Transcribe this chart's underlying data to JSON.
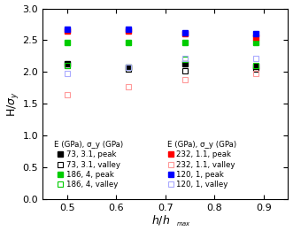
{
  "xlim": [
    0.45,
    0.95
  ],
  "ylim": [
    0.0,
    3.0
  ],
  "xticks": [
    0.5,
    0.6,
    0.7,
    0.8,
    0.9
  ],
  "yticks": [
    0.0,
    0.5,
    1.0,
    1.5,
    2.0,
    2.5,
    3.0
  ],
  "series": [
    {
      "label": "73, 3.1, peak",
      "color": "black",
      "filled": true,
      "x": [
        0.5,
        0.625,
        0.74,
        0.885
      ],
      "y": [
        2.13,
        2.07,
        2.13,
        2.09
      ]
    },
    {
      "label": "73, 3.1, valley",
      "color": "black",
      "filled": false,
      "x": [
        0.5,
        0.625,
        0.74,
        0.885
      ],
      "y": [
        2.1,
        2.05,
        2.02,
        2.05
      ]
    },
    {
      "label": "186, 4, peak",
      "color": "#00cc00",
      "filled": true,
      "x": [
        0.5,
        0.625,
        0.74,
        0.885
      ],
      "y": [
        2.46,
        2.46,
        2.47,
        2.46
      ]
    },
    {
      "label": "186, 4, valley",
      "color": "#00cc00",
      "filled": false,
      "x": [
        0.5,
        0.625,
        0.74,
        0.885
      ],
      "y": [
        2.1,
        2.07,
        2.2,
        2.1
      ]
    },
    {
      "label": "232, 1.1, peak",
      "color": "red",
      "filled": true,
      "x": [
        0.5,
        0.625,
        0.74,
        0.885
      ],
      "y": [
        2.65,
        2.65,
        2.61,
        2.55
      ]
    },
    {
      "label": "232, 1.1, valley",
      "color": "#ff9999",
      "filled": false,
      "x": [
        0.5,
        0.625,
        0.74,
        0.885
      ],
      "y": [
        1.64,
        1.77,
        1.88,
        1.97
      ]
    },
    {
      "label": "120, 1, peak",
      "color": "blue",
      "filled": true,
      "x": [
        0.5,
        0.625,
        0.74,
        0.885
      ],
      "y": [
        2.67,
        2.67,
        2.62,
        2.6
      ]
    },
    {
      "label": "120, 1, valley",
      "color": "#aaaaff",
      "filled": false,
      "x": [
        0.5,
        0.625,
        0.74,
        0.885
      ],
      "y": [
        1.97,
        2.08,
        2.22,
        2.22
      ]
    }
  ],
  "legend_entries_col1": [
    {
      "label": "73, 3.1, peak",
      "color": "black",
      "filled": true
    },
    {
      "label": "73, 3.1, valley",
      "color": "black",
      "filled": false
    },
    {
      "label": "186, 4, peak",
      "color": "#00cc00",
      "filled": true
    },
    {
      "label": "186, 4, valley",
      "color": "#00cc00",
      "filled": false
    }
  ],
  "legend_entries_col2": [
    {
      "label": "232, 1.1, peak",
      "color": "red",
      "filled": true
    },
    {
      "label": "232, 1.1, valley",
      "color": "#ff9999",
      "filled": false
    },
    {
      "label": "120, 1, peak",
      "color": "blue",
      "filled": true
    },
    {
      "label": "120, 1, valley",
      "color": "#aaaaff",
      "filled": false
    }
  ],
  "col1_title": "E (GPa), σ_y (GPa)",
  "col2_title": "E (GPa), σ_y (GPa)"
}
